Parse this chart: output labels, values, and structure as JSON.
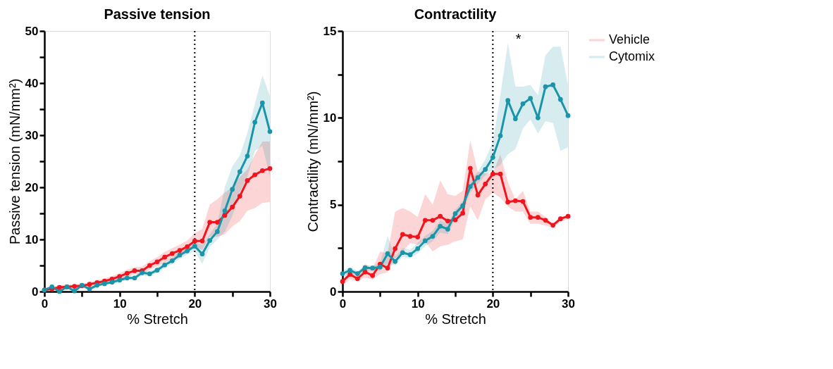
{
  "chart_data": [
    {
      "type": "line",
      "title": "Passive tension",
      "xlabel": "% Stretch",
      "ylabel": "Passive tension (mN/mm²)",
      "x": [
        0,
        1,
        2,
        3,
        4,
        5,
        6,
        7,
        8,
        9,
        10,
        11,
        12,
        13,
        14,
        15,
        16,
        17,
        18,
        19,
        20,
        21,
        22,
        23,
        24,
        25,
        26,
        27,
        28,
        29,
        30
      ],
      "series": [
        {
          "name": "Vehicle",
          "color": "#f0141e",
          "values": [
            0.3,
            0.5,
            0.8,
            0.9,
            1.0,
            1.1,
            1.4,
            1.7,
            2.0,
            2.4,
            2.9,
            3.5,
            4.0,
            4.0,
            5.0,
            5.7,
            6.6,
            7.3,
            7.9,
            8.6,
            9.7,
            9.7,
            13.3,
            13.3,
            14.6,
            16.2,
            18.3,
            21.3,
            22.4,
            23.2,
            23.6
          ],
          "lower": [
            0.1,
            0.1,
            0.4,
            0.5,
            0.6,
            0.7,
            1.0,
            1.2,
            1.5,
            1.8,
            2.3,
            2.8,
            3.3,
            3.3,
            4.2,
            4.8,
            5.6,
            6.3,
            6.8,
            7.4,
            8.5,
            8.0,
            10.5,
            10.5,
            11.0,
            12.5,
            13.5,
            15.5,
            16.0,
            17.0,
            17.2
          ],
          "upper": [
            0.8,
            0.9,
            1.2,
            1.3,
            1.4,
            1.5,
            1.8,
            2.2,
            2.5,
            3.0,
            3.5,
            4.2,
            4.7,
            4.8,
            5.8,
            6.6,
            7.6,
            8.3,
            9.0,
            9.8,
            11.2,
            12.0,
            16.7,
            17.7,
            19.0,
            20.0,
            22.0,
            23.4,
            26.3,
            28.8,
            28.8
          ]
        },
        {
          "name": "Cytomix",
          "color": "#1a94a8",
          "values": [
            0.3,
            0.9,
            0,
            0.9,
            0.1,
            1.2,
            0.5,
            1.2,
            1.5,
            1.8,
            2.2,
            2.6,
            2.6,
            3.6,
            3.4,
            4.1,
            5.1,
            5.9,
            7.0,
            7.8,
            8.7,
            7.2,
            9.8,
            11.5,
            15.5,
            19.6,
            23.0,
            26.0,
            32.5,
            36.2,
            30.7
          ],
          "lower": [
            0,
            0.6,
            0,
            0.6,
            0,
            0.9,
            0.3,
            0.9,
            1.2,
            1.5,
            1.8,
            2.2,
            2.2,
            3.1,
            2.9,
            3.6,
            4.5,
            5.3,
            6.3,
            7.1,
            7.8,
            5.3,
            8.5,
            10.0,
            11.5,
            14.5,
            19.0,
            22.0,
            27.0,
            28.0,
            22.0
          ],
          "upper": [
            0.4,
            1.2,
            0.3,
            1.2,
            0.4,
            1.5,
            0.8,
            1.5,
            1.8,
            2.1,
            2.6,
            3.0,
            3.0,
            4.1,
            3.9,
            4.6,
            5.7,
            6.5,
            7.7,
            8.5,
            9.5,
            9.0,
            11.0,
            13.0,
            20.0,
            24.0,
            26.1,
            30.4,
            36.0,
            41.5,
            37.5
          ]
        }
      ],
      "xlim": [
        0,
        30
      ],
      "xticks": [
        0,
        {
          "value": 5,
          "label": null
        },
        10,
        {
          "value": 15,
          "label": null
        },
        20,
        {
          "value": 25,
          "label": null
        },
        30
      ],
      "ylim": [
        0,
        50
      ],
      "yticks": [
        0,
        {
          "value": 5,
          "label": null
        },
        10,
        {
          "value": 15,
          "label": null
        },
        20,
        {
          "value": 25,
          "label": null
        },
        30,
        {
          "value": 35,
          "label": null
        },
        40,
        {
          "value": 45,
          "label": null
        },
        50
      ],
      "ref_lines": [
        {
          "axis": "x",
          "value": 20,
          "line_style": "dotted",
          "color": "#000000"
        }
      ],
      "grid": false,
      "legend": "right",
      "marker": "circle",
      "line_style": "solid"
    },
    {
      "type": "line",
      "title": "Contractility",
      "xlabel": "% Stretch",
      "ylabel": "Contractility (mN/mm²)",
      "x": [
        0,
        1,
        2,
        3,
        4,
        5,
        6,
        7,
        8,
        9,
        10,
        11,
        12,
        13,
        14,
        15,
        16,
        17,
        18,
        19,
        20,
        21,
        22,
        23,
        24,
        25,
        26,
        27,
        28,
        29,
        30
      ],
      "series": [
        {
          "name": "Vehicle",
          "color": "#f0141e",
          "values": [
            0.58,
            0.99,
            0.74,
            1.13,
            0.92,
            1.58,
            1.35,
            2.47,
            3.29,
            3.18,
            3.14,
            4.1,
            4.1,
            4.33,
            4.06,
            4.13,
            4.51,
            7.09,
            5.55,
            6.19,
            6.77,
            6.77,
            5.15,
            5.23,
            5.19,
            4.27,
            4.27,
            4.1,
            3.82,
            4.19,
            4.33
          ],
          "lower": [
            0.4,
            0.7,
            0.6,
            0.8,
            0.7,
            1.0,
            1.1,
            1.9,
            2.3,
            2.8,
            2.7,
            2.9,
            2.3,
            2.6,
            2.7,
            2.9,
            3.0,
            4.9,
            4.1,
            5.3,
            5.7,
            5.4,
            4.9,
            4.6,
            4.6,
            3.9,
            3.9,
            3.8,
            3.7,
            4.0,
            4.2
          ],
          "upper": [
            0.8,
            1.2,
            1.0,
            1.6,
            1.3,
            2.3,
            2.2,
            4.6,
            4.8,
            4.6,
            4.3,
            5.6,
            5.0,
            6.4,
            5.6,
            5.5,
            5.8,
            8.7,
            6.9,
            6.8,
            6.8,
            7.9,
            6.3,
            5.3,
            5.8,
            4.6,
            4.6,
            4.3,
            3.9,
            4.3,
            4.4
          ]
        },
        {
          "name": "Cytomix",
          "color": "#1a94a8",
          "values": [
            1.03,
            1.22,
            1.03,
            1.37,
            1.35,
            1.41,
            2.18,
            1.73,
            2.24,
            2.12,
            2.47,
            2.92,
            3.18,
            3.76,
            3.59,
            4.49,
            4.94,
            6.05,
            6.56,
            7.03,
            7.72,
            8.97,
            11.0,
            9.94,
            10.81,
            11.12,
            10.0,
            11.79,
            11.9,
            11.06,
            10.13
          ],
          "lower": [
            0.9,
            1.0,
            0.9,
            1.2,
            1.2,
            1.2,
            1.6,
            1.5,
            2.0,
            1.9,
            2.2,
            2.6,
            2.9,
            3.4,
            3.3,
            4.2,
            4.6,
            5.7,
            6.2,
            6.7,
            7.0,
            7.3,
            7.9,
            8.2,
            9.4,
            9.9,
            9.1,
            9.8,
            9.7,
            8.1,
            8.3
          ],
          "upper": [
            1.2,
            1.4,
            1.2,
            1.5,
            1.5,
            1.6,
            3.2,
            2.0,
            2.5,
            2.4,
            2.8,
            3.2,
            3.5,
            4.1,
            3.9,
            4.7,
            5.2,
            6.4,
            6.9,
            7.6,
            8.6,
            11.3,
            14.3,
            11.8,
            11.8,
            11.9,
            11.3,
            13.6,
            14.1,
            14.1,
            11.9
          ]
        }
      ],
      "xlim": [
        0,
        30
      ],
      "xticks": [
        0,
        {
          "value": 5,
          "label": null
        },
        10,
        {
          "value": 15,
          "label": null
        },
        20,
        {
          "value": 25,
          "label": null
        },
        30
      ],
      "ylim": [
        0,
        15
      ],
      "yticks": [
        0,
        {
          "value": 2.5,
          "label": null
        },
        5,
        {
          "value": 7.5,
          "label": null
        },
        10,
        {
          "value": 12.5,
          "label": null
        },
        15
      ],
      "ref_lines": [
        {
          "axis": "x",
          "value": 20,
          "line_style": "dotted",
          "color": "#000000"
        }
      ],
      "annotations": [
        "*"
      ],
      "grid": false,
      "legend": "right",
      "marker": "circle",
      "line_style": "solid"
    }
  ]
}
